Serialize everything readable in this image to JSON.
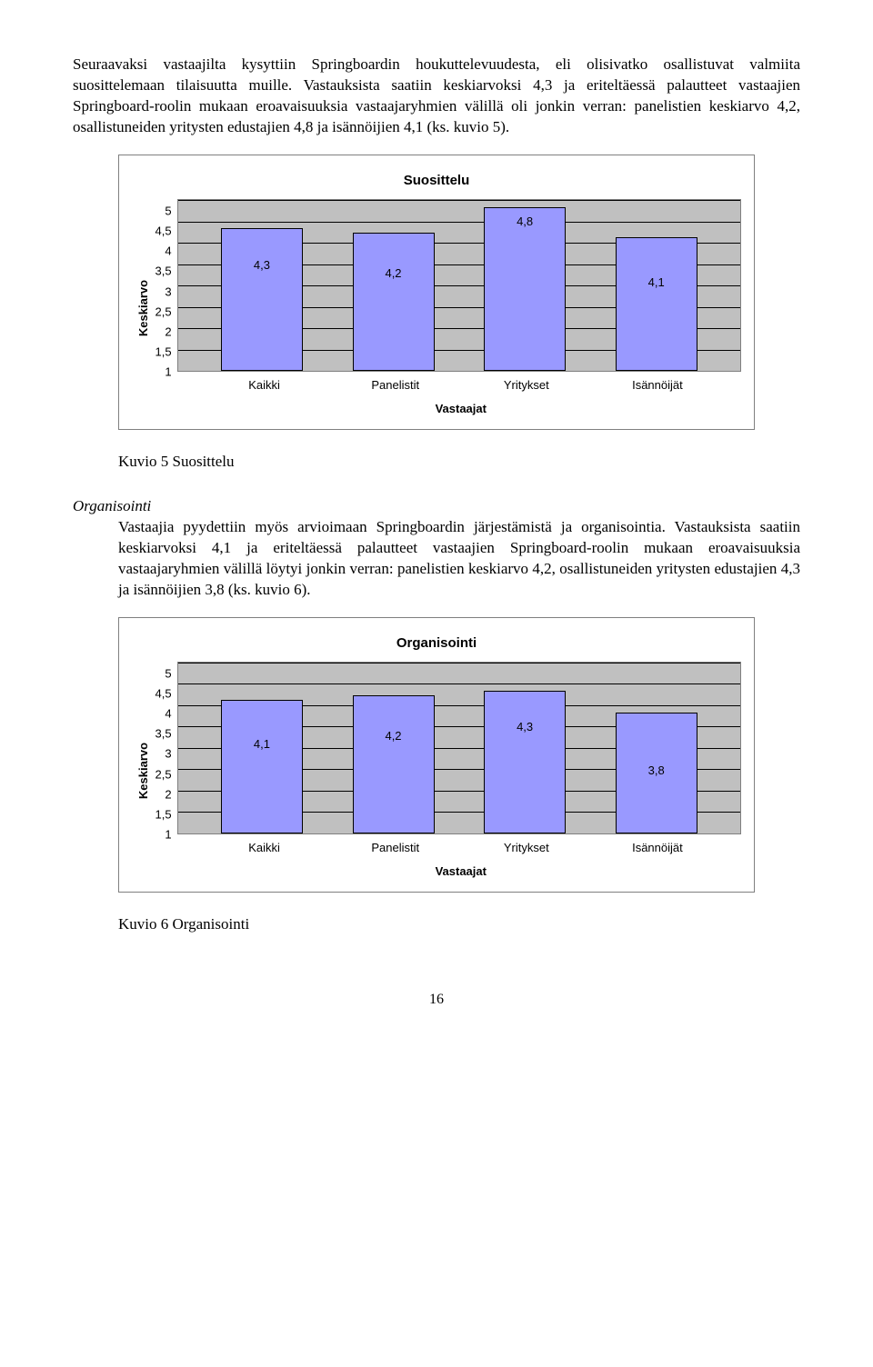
{
  "p1": "Seuraavaksi vastaajilta kysyttiin Springboardin houkuttelevuudesta, eli olisivatko osallistuvat valmiita suosittelemaan tilaisuutta muille. Vastauksista saatiin keskiarvoksi 4,3 ja eriteltäessä palautteet vastaajien Springboard-roolin mukaan eroavaisuuksia vastaajaryhmien välillä oli jonkin verran: panelistien keskiarvo 4,2, osallistuneiden yritysten edustajien 4,8 ja isännöijien 4,1 (ks. kuvio 5).",
  "chart1": {
    "type": "bar",
    "title": "Suosittelu",
    "ylabel": "Keskiarvo",
    "xlabel": "Vastaajat",
    "ylim": [
      1,
      5
    ],
    "ytick_step": 0.5,
    "yticks": [
      "1",
      "1,5",
      "2",
      "2,5",
      "3",
      "3,5",
      "4",
      "4,5",
      "5"
    ],
    "categories": [
      "Kaikki",
      "Panelistit",
      "Yritykset",
      "Isännöijät"
    ],
    "value_labels": [
      "4,3",
      "4,2",
      "4,8",
      "4,1"
    ],
    "values": [
      4.3,
      4.2,
      4.8,
      4.1
    ],
    "bar_color": "#9999ff",
    "bar_border": "#000000",
    "plot_bg": "#c0c0c0",
    "grid_color": "#000000",
    "bar_width": 0.75
  },
  "caption1": "Kuvio 5 Suosittelu",
  "section2_title": "Organisointi",
  "p2": "Vastaajia pyydettiin myös arvioimaan Springboardin järjestämistä ja organisointia. Vastauksista saatiin keskiarvoksi 4,1 ja eriteltäessä palautteet vastaajien Springboard-roolin mukaan eroavaisuuksia vastaajaryhmien välillä löytyi jonkin verran: panelistien keskiarvo 4,2, osallistuneiden yritysten edustajien 4,3 ja isännöijien 3,8 (ks. kuvio 6).",
  "chart2": {
    "type": "bar",
    "title": "Organisointi",
    "ylabel": "Keskiarvo",
    "xlabel": "Vastaajat",
    "ylim": [
      1,
      5
    ],
    "ytick_step": 0.5,
    "yticks": [
      "1",
      "1,5",
      "2",
      "2,5",
      "3",
      "3,5",
      "4",
      "4,5",
      "5"
    ],
    "categories": [
      "Kaikki",
      "Panelistit",
      "Yritykset",
      "Isännöijät"
    ],
    "value_labels": [
      "4,1",
      "4,2",
      "4,3",
      "3,8"
    ],
    "values": [
      4.1,
      4.2,
      4.3,
      3.8
    ],
    "bar_color": "#9999ff",
    "bar_border": "#000000",
    "plot_bg": "#c0c0c0",
    "grid_color": "#000000",
    "bar_width": 0.75
  },
  "caption2": "Kuvio 6 Organisointi",
  "page_number": "16"
}
